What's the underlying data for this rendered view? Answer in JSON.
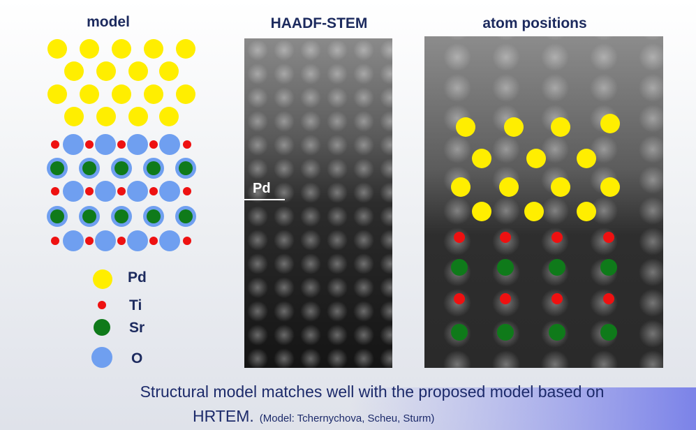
{
  "panels": [
    {
      "title": "model"
    },
    {
      "title": "HAADF-STEM",
      "annotation": "Pd"
    },
    {
      "title": "atom positions"
    }
  ],
  "legend": [
    {
      "label": "Pd"
    },
    {
      "label": "Ti"
    },
    {
      "label": "Sr"
    },
    {
      "label": "O"
    }
  ],
  "caption": {
    "line1": "Structural model matches well with the proposed model based on",
    "line2": "HRTEM.",
    "note": "(Model: Tchernychova, Scheu, Sturm)"
  }
}
